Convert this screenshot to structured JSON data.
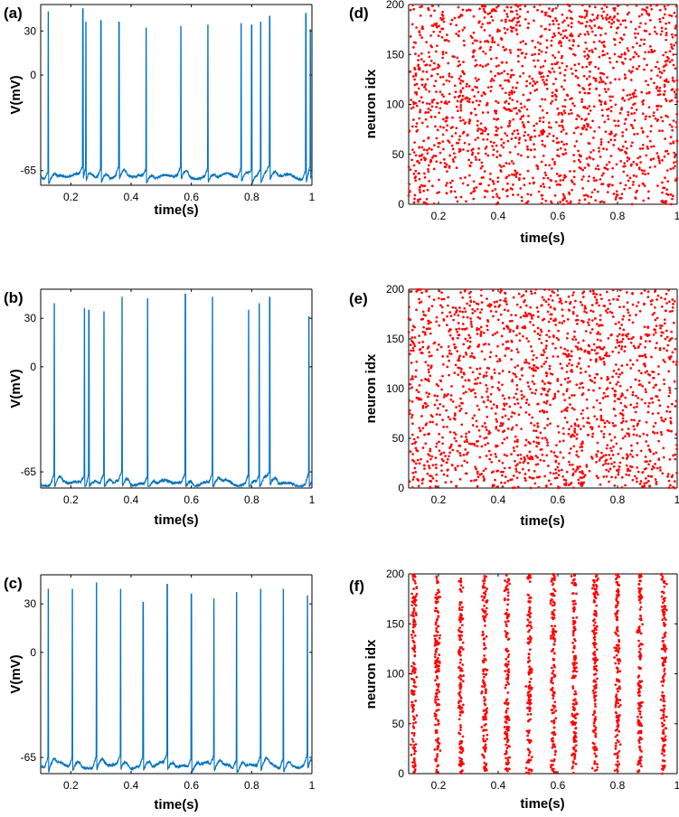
{
  "figure": {
    "layout": "3 rows x 2 columns"
  },
  "chart_data": [
    {
      "id": "a",
      "panel_label": "(a)",
      "type": "line",
      "title": "",
      "xlabel": "time(s)",
      "ylabel": "V(mV)",
      "xlim": [
        0.1,
        1.0
      ],
      "ylim": [
        -75,
        48
      ],
      "xticks": [
        0.2,
        0.4,
        0.6,
        0.8,
        1
      ],
      "xtick_labels": [
        "0.2",
        "0.4",
        "0.6",
        "0.8",
        "1"
      ],
      "yticks": [
        -65,
        0,
        30
      ],
      "ytick_labels": [
        "-65",
        "0",
        "30"
      ],
      "color": "#0072BD",
      "baseline_mV": -69,
      "spike_times_s": [
        0.125,
        0.24,
        0.25,
        0.3,
        0.36,
        0.45,
        0.565,
        0.655,
        0.765,
        0.8,
        0.83,
        0.86,
        0.98,
        0.995
      ],
      "spike_peaks_mV": [
        43,
        44,
        36,
        37,
        36,
        32,
        33,
        34,
        35,
        34,
        36,
        40,
        42,
        31
      ]
    },
    {
      "id": "b",
      "panel_label": "(b)",
      "type": "line",
      "title": "",
      "xlabel": "time(s)",
      "ylabel": "V(mV)",
      "xlim": [
        0.1,
        1.0
      ],
      "ylim": [
        -75,
        48
      ],
      "xticks": [
        0.2,
        0.4,
        0.6,
        0.8,
        1
      ],
      "xtick_labels": [
        "0.2",
        "0.4",
        "0.6",
        "0.8",
        "1"
      ],
      "yticks": [
        -65,
        0,
        30
      ],
      "ytick_labels": [
        "-65",
        "0",
        "30"
      ],
      "color": "#0072BD",
      "baseline_mV": -72,
      "spike_times_s": [
        0.145,
        0.245,
        0.26,
        0.31,
        0.37,
        0.455,
        0.58,
        0.67,
        0.79,
        0.825,
        0.86,
        0.99
      ],
      "spike_peaks_mV": [
        39,
        36,
        35,
        34,
        43,
        42,
        45,
        43,
        35,
        39,
        43,
        31
      ]
    },
    {
      "id": "c",
      "panel_label": "(c)",
      "type": "line",
      "title": "",
      "xlabel": "time(s)",
      "ylabel": "V(mV)",
      "xlim": [
        0.1,
        1.0
      ],
      "ylim": [
        -75,
        48
      ],
      "xticks": [
        0.2,
        0.4,
        0.6,
        0.8,
        1
      ],
      "xtick_labels": [
        "0.2",
        "0.4",
        "0.6",
        "0.8",
        "1"
      ],
      "yticks": [
        -65,
        0,
        30
      ],
      "ytick_labels": [
        "-65",
        "0",
        "30"
      ],
      "color": "#0072BD",
      "baseline_mV": -70,
      "spike_times_s": [
        0.125,
        0.205,
        0.285,
        0.365,
        0.44,
        0.52,
        0.6,
        0.675,
        0.75,
        0.83,
        0.905,
        0.985
      ],
      "spike_peaks_mV": [
        39,
        39,
        43,
        39,
        31,
        42,
        36,
        33,
        37,
        39,
        39,
        35
      ]
    },
    {
      "id": "d",
      "panel_label": "(d)",
      "type": "scatter",
      "title": "",
      "xlabel": "time(s)",
      "ylabel": "neuron idx",
      "xlim": [
        0.1,
        1.0
      ],
      "ylim": [
        0,
        200
      ],
      "xticks": [
        0.2,
        0.4,
        0.6,
        0.8,
        1
      ],
      "xtick_labels": [
        "0.2",
        "0.4",
        "0.6",
        "0.8",
        "1"
      ],
      "yticks": [
        0,
        50,
        100,
        150,
        200
      ],
      "ytick_labels": [
        "0",
        "50",
        "100",
        "150",
        "200"
      ],
      "color": "#FF0000",
      "pattern": "asynchronous",
      "n_neurons": 200,
      "n_points": 1800,
      "seed": 11
    },
    {
      "id": "e",
      "panel_label": "(e)",
      "type": "scatter",
      "title": "",
      "xlabel": "time(s)",
      "ylabel": "neuron idx",
      "xlim": [
        0.1,
        1.0
      ],
      "ylim": [
        0,
        200
      ],
      "xticks": [
        0.2,
        0.4,
        0.6,
        0.8,
        1
      ],
      "xtick_labels": [
        "0.2",
        "0.4",
        "0.6",
        "0.8",
        "1"
      ],
      "yticks": [
        0,
        50,
        100,
        150,
        200
      ],
      "ytick_labels": [
        "0",
        "50",
        "100",
        "150",
        "200"
      ],
      "color": "#FF0000",
      "pattern": "asynchronous",
      "n_neurons": 200,
      "n_points": 1800,
      "seed": 23
    },
    {
      "id": "f",
      "panel_label": "(f)",
      "type": "scatter",
      "title": "",
      "xlabel": "time(s)",
      "ylabel": "neuron idx",
      "xlim": [
        0.1,
        1.0
      ],
      "ylim": [
        0,
        200
      ],
      "xticks": [
        0.2,
        0.4,
        0.6,
        0.8,
        1
      ],
      "xtick_labels": [
        "0.2",
        "0.4",
        "0.6",
        "0.8",
        "1"
      ],
      "yticks": [
        0,
        50,
        100,
        150,
        200
      ],
      "ytick_labels": [
        "0",
        "50",
        "100",
        "150",
        "200"
      ],
      "color": "#FF0000",
      "pattern": "synchronous",
      "n_neurons": 200,
      "burst_times_s": [
        0.118,
        0.195,
        0.275,
        0.355,
        0.43,
        0.505,
        0.585,
        0.655,
        0.725,
        0.8,
        0.875,
        0.955
      ],
      "burst_jitter_s": 0.006,
      "points_per_burst": 140,
      "seed": 37
    }
  ]
}
